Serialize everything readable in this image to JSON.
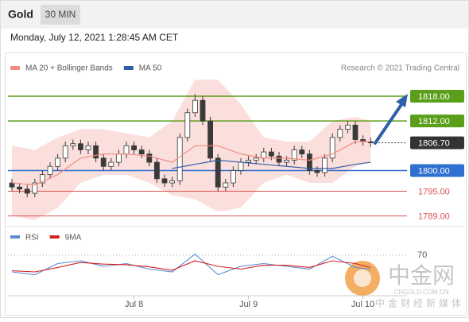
{
  "header": {
    "symbol": "Gold",
    "interval": "30 MIN",
    "timestamp": "Monday, July 12, 2021 1:28:45 AM CET"
  },
  "source": "Research © 2021 Trading Central",
  "watermark": {
    "brand": "中金网",
    "site": "CNGOLD.COM.CN",
    "tagline": "中金财经新媒体"
  },
  "chart_data": [
    {
      "type": "candlestick",
      "color": "#3a3a3a",
      "categories": [
        null,
        null,
        null,
        null,
        null,
        null,
        null,
        null,
        null,
        null,
        null,
        null,
        null,
        null,
        null,
        null,
        "Jul 8",
        null,
        null,
        null,
        null,
        null,
        null,
        null,
        null,
        null,
        null,
        null,
        null,
        null,
        null,
        "Jul 9",
        null,
        null,
        null,
        null,
        null,
        null,
        null,
        null,
        null,
        null,
        null,
        null,
        null,
        null,
        "Jul 10",
        null
      ],
      "open": [
        1797,
        1796,
        1795.5,
        1794.5,
        1797,
        1799,
        1801,
        1803,
        1806,
        1806.5,
        1805,
        1806,
        1803,
        1801,
        1802,
        1804,
        1806,
        1805,
        1804,
        1802,
        1798,
        1797,
        1797.5,
        1808,
        1814,
        1817,
        1812,
        1803,
        1796,
        1797,
        1800,
        1802,
        1802.5,
        1803,
        1804.5,
        1803.5,
        1802,
        1802.5,
        1805,
        1804,
        1800,
        1799.5,
        1803,
        1808,
        1810,
        1811,
        1807.5,
        1807
      ],
      "high": [
        1798,
        1797,
        1796.5,
        1798,
        1800,
        1802,
        1804,
        1807,
        1807.5,
        1807.5,
        1807,
        1807,
        1804,
        1803,
        1805,
        1807,
        1807,
        1806,
        1805,
        1803,
        1799,
        1798.5,
        1809,
        1815,
        1818.5,
        1818,
        1813,
        1804,
        1798,
        1801,
        1803,
        1803.5,
        1804,
        1805.5,
        1805.5,
        1804.5,
        1803.5,
        1806,
        1806,
        1805,
        1801,
        1804,
        1809,
        1811,
        1812,
        1812,
        1808.5,
        1808
      ],
      "low": [
        1795,
        1794.5,
        1793.5,
        1793.5,
        1796,
        1798,
        1800,
        1802,
        1805,
        1804,
        1804,
        1802,
        1800,
        1800,
        1801,
        1803,
        1804,
        1803,
        1801,
        1797,
        1796,
        1796,
        1796.5,
        1807,
        1813,
        1811,
        1802,
        1795,
        1795,
        1796,
        1799,
        1801,
        1801.5,
        1802,
        1802.5,
        1801,
        1801,
        1801.5,
        1803,
        1799,
        1798.5,
        1798.5,
        1802,
        1807,
        1809,
        1806.5,
        1806,
        1805.7
      ],
      "close": [
        1796,
        1795.5,
        1794.5,
        1797,
        1799,
        1801,
        1803,
        1806,
        1806.5,
        1805,
        1806,
        1803,
        1801,
        1802,
        1804,
        1806,
        1805,
        1804,
        1802,
        1798,
        1797,
        1797.5,
        1808,
        1814,
        1817,
        1812,
        1803,
        1796,
        1797,
        1800,
        1802,
        1802.5,
        1803,
        1804.5,
        1803.5,
        1802,
        1802.5,
        1805,
        1804,
        1800,
        1799.5,
        1803,
        1808,
        1810,
        1811,
        1807.5,
        1807,
        1806.7
      ],
      "ylim": [
        1787,
        1823
      ],
      "series": [
        {
          "name": "MA 20 + Bollinger Bands",
          "color": "#f28b82",
          "x": [
            0,
            3,
            6,
            9,
            12,
            15,
            18,
            21,
            24,
            27,
            30,
            33,
            36,
            39,
            42,
            45,
            47
          ],
          "values": [
            1797,
            1796.5,
            1799,
            1803,
            1804,
            1804,
            1803.5,
            1802,
            1806,
            1806,
            1804,
            1803,
            1803,
            1802.5,
            1804,
            1807,
            1807
          ],
          "upper": [
            1806,
            1805,
            1808,
            1810,
            1810,
            1809,
            1808,
            1812,
            1822,
            1822,
            1816,
            1808,
            1807,
            1807,
            1812,
            1813,
            1812
          ],
          "lower": [
            1789,
            1788,
            1791,
            1797,
            1799,
            1799,
            1797,
            1794,
            1793,
            1790,
            1791,
            1797,
            1799,
            1797,
            1797,
            1801,
            1802
          ]
        },
        {
          "name": "MA 50",
          "color": "#2f5fa7",
          "x": [
            21,
            24,
            27,
            30,
            33,
            36,
            39,
            42,
            45,
            47
          ],
          "values": [
            1800.5,
            1801.5,
            1802.5,
            1802,
            1801.5,
            1801,
            1800.5,
            1800.5,
            1801.5,
            1802
          ]
        }
      ],
      "levels": [
        {
          "value": 1818,
          "label": "1818.00",
          "color": "#5a9e1a",
          "boxed": true,
          "line": "solid"
        },
        {
          "value": 1812,
          "label": "1812.00",
          "color": "#5a9e1a",
          "boxed": true,
          "line": "solid"
        },
        {
          "value": 1806.7,
          "label": "1806.70",
          "color": "#333333",
          "boxed": true,
          "line": "dotted"
        },
        {
          "value": 1800,
          "label": "1800.00",
          "color": "#2f6fd1",
          "boxed": true,
          "line": "solid"
        },
        {
          "value": 1795,
          "label": "1795.00",
          "color": "#d9534f",
          "boxed": false,
          "line": "solid"
        },
        {
          "value": 1789,
          "label": "1789.00",
          "color": "#d9534f",
          "boxed": false,
          "line": "solid"
        }
      ]
    },
    {
      "type": "line",
      "ylim": [
        0,
        100
      ],
      "yticks": [
        70
      ],
      "series": [
        {
          "name": "RSI",
          "color": "#5b8ad6",
          "x": [
            0,
            3,
            6,
            9,
            12,
            15,
            18,
            21,
            24,
            27,
            30,
            33,
            36,
            39,
            42,
            45,
            47
          ],
          "values": [
            40,
            35,
            55,
            60,
            50,
            55,
            45,
            40,
            72,
            35,
            50,
            55,
            50,
            45,
            68,
            48,
            45
          ]
        },
        {
          "name": "9MA",
          "color": "#d62020",
          "x": [
            0,
            3,
            6,
            9,
            12,
            15,
            18,
            21,
            24,
            27,
            30,
            33,
            36,
            39,
            42,
            45,
            47
          ],
          "values": [
            42,
            40,
            48,
            57,
            54,
            53,
            49,
            43,
            60,
            50,
            45,
            52,
            52,
            48,
            60,
            55,
            48
          ]
        }
      ]
    }
  ]
}
